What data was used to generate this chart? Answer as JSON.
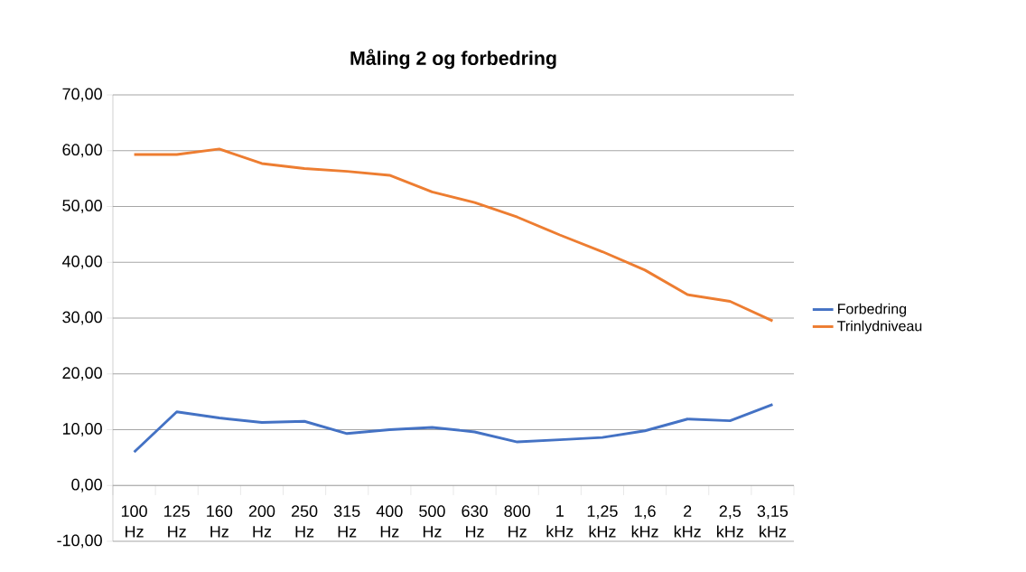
{
  "chart_data": {
    "type": "line",
    "title": "**Måling 2 og forbedring**",
    "categories": [
      "100 Hz",
      "125 Hz",
      "160 Hz",
      "200 Hz",
      "250 Hz",
      "315 Hz",
      "400 Hz",
      "500 Hz",
      "630 Hz",
      "800 Hz",
      "1 kHz",
      "1,25 kHz",
      "1,6 kHz",
      "2 kHz",
      "2,5 kHz",
      "3,15 kHz"
    ],
    "series": [
      {
        "name": "Forbedring",
        "color": "#4472c4",
        "values": [
          6.0,
          13.2,
          12.1,
          11.3,
          11.5,
          9.3,
          10.0,
          10.4,
          9.6,
          7.8,
          8.2,
          8.6,
          9.8,
          11.9,
          11.6,
          14.5
        ]
      },
      {
        "name": "Trinlydniveau",
        "color": "#ed7d31",
        "values": [
          59.3,
          59.3,
          60.3,
          57.7,
          56.8,
          56.3,
          55.6,
          52.6,
          50.7,
          48.1,
          44.9,
          41.9,
          38.6,
          34.2,
          33.0,
          29.5
        ]
      }
    ],
    "ylim": [
      -10,
      70
    ],
    "yticks": [
      {
        "value": -10,
        "label": "-10,00"
      },
      {
        "value": 0,
        "label": "0,00"
      },
      {
        "value": 10,
        "label": "10,00"
      },
      {
        "value": 20,
        "label": "20,00"
      },
      {
        "value": 30,
        "label": "30,00"
      },
      {
        "value": 40,
        "label": "40,00"
      },
      {
        "value": 50,
        "label": "50,00"
      },
      {
        "value": 60,
        "label": "60,00"
      },
      {
        "value": 70,
        "label": "70,00"
      }
    ],
    "grid": "y",
    "legend": "right",
    "marker": "none",
    "line_style": "solid"
  }
}
